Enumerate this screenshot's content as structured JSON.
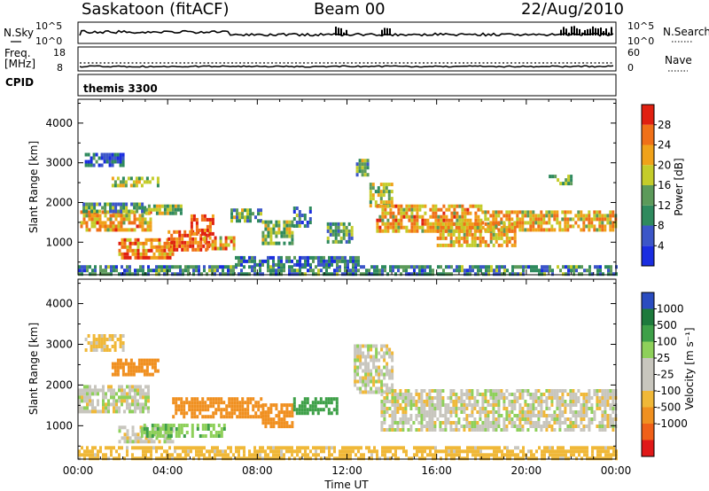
{
  "header": {
    "title": "Saskatoon (fitACF)",
    "beam": "Beam 00",
    "date": "22/Aug/2010"
  },
  "status_panels": {
    "nsky": {
      "label": "N.Sky",
      "ticks": [
        "10^5",
        "10^0"
      ]
    },
    "nsearch": {
      "label": "N.Search",
      "ticks": [
        "10^5",
        "10^0"
      ]
    },
    "freq": {
      "label_line1": "Freq.",
      "label_line2": "[MHz]",
      "ticks": [
        "18",
        "8"
      ]
    },
    "nave": {
      "label": "Nave",
      "ticks": [
        "60",
        "0"
      ]
    },
    "cpid": {
      "label": "CPID",
      "value": "themis 3300"
    }
  },
  "colors": {
    "power": [
      "#1a2de0",
      "#3c56c8",
      "#2f8a5e",
      "#5c9a5a",
      "#c4cc2a",
      "#f0a21a",
      "#f07018",
      "#e02010"
    ],
    "velocity": [
      "#e01818",
      "#f06018",
      "#f09020",
      "#f0b838",
      "#c8c6be",
      "#c8c6be",
      "#8ed05a",
      "#3ea048",
      "#1d7a3c",
      "#2a4cc0"
    ]
  },
  "chart_data": [
    {
      "type": "heatmap",
      "name": "power",
      "ylabel": "Slant Range [km]",
      "xlabel": "Time UT",
      "x_ticks": [
        "00:00",
        "04:00",
        "08:00",
        "12:00",
        "16:00",
        "20:00",
        "00:00"
      ],
      "xlim_hours": [
        0,
        24
      ],
      "y_ticks": [
        1000,
        2000,
        3000,
        4000
      ],
      "ylim_km": [
        180,
        4600
      ],
      "colorbar": {
        "label": "Power [dB]",
        "ticks": [
          4,
          8,
          12,
          16,
          20,
          24,
          28
        ],
        "range": [
          0,
          32
        ]
      },
      "regions": [
        {
          "t0": 0.3,
          "t1": 2.0,
          "r0": 2900,
          "r1": 3250,
          "v": 6
        },
        {
          "t0": 0.1,
          "t1": 3.2,
          "r0": 1350,
          "r1": 1800,
          "v": 22
        },
        {
          "t0": 0.2,
          "t1": 3.0,
          "r0": 1800,
          "r1": 2000,
          "v": 11
        },
        {
          "t0": 1.5,
          "t1": 3.6,
          "r0": 2400,
          "r1": 2650,
          "v": 15
        },
        {
          "t0": 3.0,
          "t1": 4.6,
          "r0": 1700,
          "r1": 1950,
          "v": 16
        },
        {
          "t0": 1.8,
          "t1": 4.2,
          "r0": 650,
          "r1": 1100,
          "v": 24
        },
        {
          "t0": 4.0,
          "t1": 5.8,
          "r0": 850,
          "r1": 1300,
          "v": 27
        },
        {
          "t0": 4.9,
          "t1": 6.0,
          "r0": 1200,
          "r1": 1700,
          "v": 28
        },
        {
          "t0": 5.6,
          "t1": 7.0,
          "r0": 850,
          "r1": 1150,
          "v": 22
        },
        {
          "t0": 6.8,
          "t1": 8.2,
          "r0": 1500,
          "r1": 1850,
          "v": 14
        },
        {
          "t0": 8.2,
          "t1": 9.6,
          "r0": 1000,
          "r1": 1550,
          "v": 15
        },
        {
          "t0": 9.6,
          "t1": 10.4,
          "r0": 1400,
          "r1": 1900,
          "v": 10
        },
        {
          "t0": 11.1,
          "t1": 12.2,
          "r0": 1000,
          "r1": 1500,
          "v": 12
        },
        {
          "t0": 12.4,
          "t1": 12.9,
          "r0": 2700,
          "r1": 3100,
          "v": 14
        },
        {
          "t0": 13.0,
          "t1": 14.0,
          "r0": 1900,
          "r1": 2500,
          "v": 16
        },
        {
          "t0": 13.3,
          "t1": 18.0,
          "r0": 1300,
          "r1": 1950,
          "v": 22
        },
        {
          "t0": 16.0,
          "t1": 19.5,
          "r0": 900,
          "r1": 1500,
          "v": 21
        },
        {
          "t0": 18.0,
          "t1": 24.0,
          "r0": 1300,
          "r1": 1800,
          "v": 21
        },
        {
          "t0": 21.0,
          "t1": 22.0,
          "r0": 2500,
          "r1": 2700,
          "v": 15
        },
        {
          "t0": 0.0,
          "t1": 24.0,
          "r0": 200,
          "r1": 420,
          "v": 10
        },
        {
          "t0": 7.0,
          "t1": 12.5,
          "r0": 420,
          "r1": 650,
          "v": 8
        }
      ]
    },
    {
      "type": "heatmap",
      "name": "velocity",
      "ylabel": "Slant Range [km]",
      "xlabel": "Time UT",
      "x_ticks": [
        "00:00",
        "04:00",
        "08:00",
        "12:00",
        "16:00",
        "20:00",
        "00:00"
      ],
      "xlim_hours": [
        0,
        24
      ],
      "y_ticks": [
        1000,
        2000,
        3000,
        4000
      ],
      "ylim_km": [
        180,
        4600
      ],
      "colorbar": {
        "label": "Velocity [m s⁻¹]",
        "ticks": [
          "-1000",
          "-500",
          "-100",
          "-25",
          "25",
          "100",
          "500",
          "1000"
        ]
      },
      "regions": [
        {
          "t0": 0.3,
          "t1": 2.0,
          "r0": 2900,
          "r1": 3250,
          "v": -50
        },
        {
          "t0": 0.0,
          "t1": 3.2,
          "r0": 1350,
          "r1": 2000,
          "v": 0
        },
        {
          "t0": 1.5,
          "t1": 3.6,
          "r0": 2300,
          "r1": 2650,
          "v": -300
        },
        {
          "t0": 1.8,
          "t1": 4.2,
          "r0": 650,
          "r1": 1000,
          "v": 0
        },
        {
          "t0": 2.8,
          "t1": 6.5,
          "r0": 750,
          "r1": 1050,
          "v": 80
        },
        {
          "t0": 4.2,
          "t1": 8.2,
          "r0": 1200,
          "r1": 1700,
          "v": -350
        },
        {
          "t0": 8.2,
          "t1": 9.6,
          "r0": 1000,
          "r1": 1550,
          "v": -200
        },
        {
          "t0": 9.6,
          "t1": 11.5,
          "r0": 1300,
          "r1": 1700,
          "v": 200
        },
        {
          "t0": 12.3,
          "t1": 14.0,
          "r0": 1800,
          "r1": 3000,
          "v": 0
        },
        {
          "t0": 13.5,
          "t1": 24.0,
          "r0": 900,
          "r1": 1900,
          "v": 0
        },
        {
          "t0": 0.0,
          "t1": 24.0,
          "r0": 200,
          "r1": 500,
          "v": -60
        }
      ]
    }
  ]
}
